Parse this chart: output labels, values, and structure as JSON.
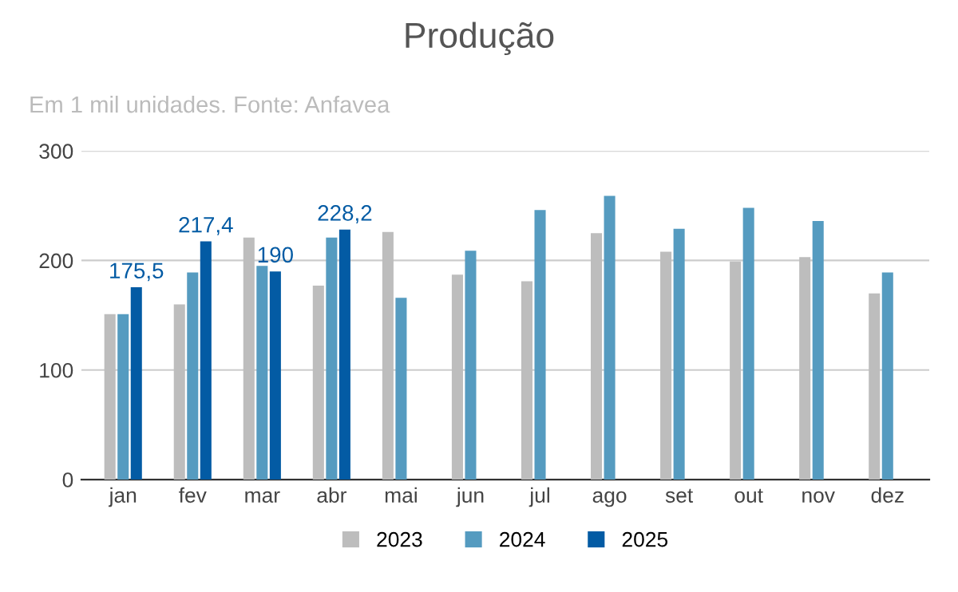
{
  "chart_data": {
    "type": "bar",
    "title": "Produção",
    "subtitle": "Em 1 mil unidades. Fonte: Anfavea",
    "categories": [
      "jan",
      "fev",
      "mar",
      "abr",
      "mai",
      "jun",
      "jul",
      "ago",
      "set",
      "out",
      "nov",
      "dez"
    ],
    "series": [
      {
        "name": "2023",
        "color": "#bdbdbd",
        "values": [
          151,
          160,
          221,
          177,
          226,
          187,
          181,
          225,
          208,
          199,
          203,
          170
        ]
      },
      {
        "name": "2024",
        "color": "#559bc0",
        "values": [
          151,
          189,
          195,
          221,
          166,
          209,
          246,
          259,
          229,
          248,
          236,
          189
        ]
      },
      {
        "name": "2025",
        "color": "#035ba4",
        "values": [
          175.5,
          217.4,
          190,
          228.2,
          null,
          null,
          null,
          null,
          null,
          null,
          null,
          null
        ],
        "value_labels": [
          "175,5",
          "217,4",
          "190",
          "228,2",
          null,
          null,
          null,
          null,
          null,
          null,
          null,
          null
        ]
      }
    ],
    "ylim": [
      0,
      300
    ],
    "yticks": [
      0,
      100,
      200,
      300
    ],
    "grid": "y",
    "legend": "bottom"
  }
}
